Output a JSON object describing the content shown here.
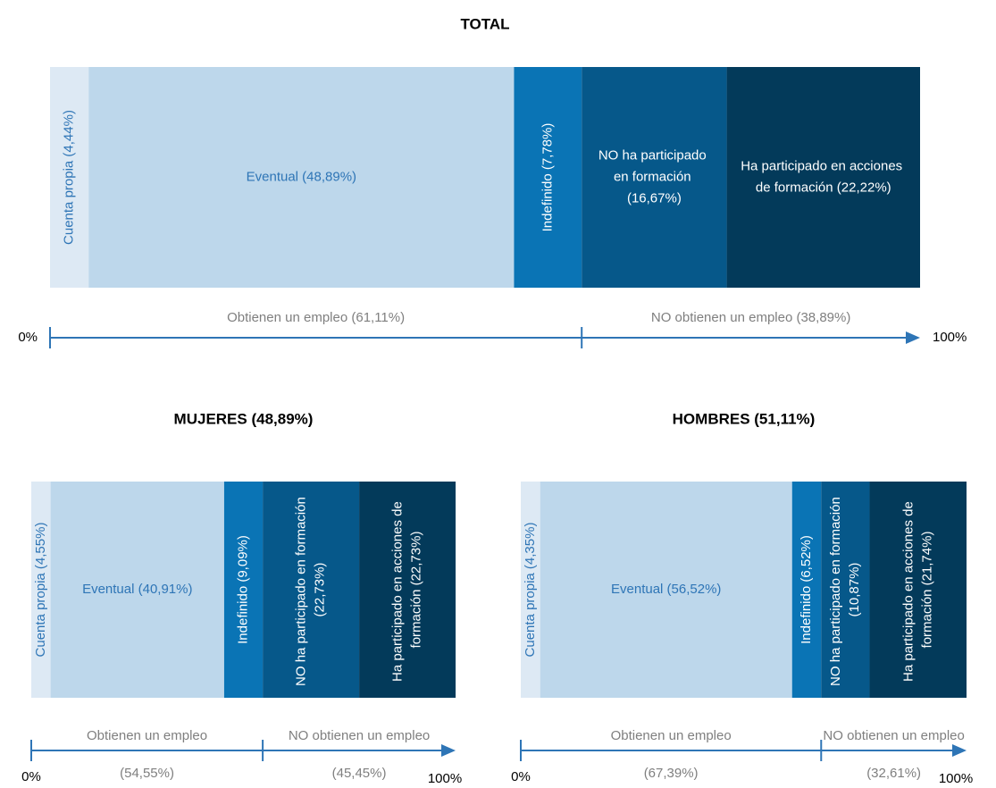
{
  "chart_data": [
    {
      "type": "stackedbar",
      "title": "TOTAL",
      "series": [
        {
          "name": "Cuenta propia (4,44%)",
          "color": "#dde9f4",
          "values": [
            4.44
          ]
        },
        {
          "name": "Eventual (48,89%)",
          "color": "#bdd7eb",
          "values": [
            48.89
          ]
        },
        {
          "name": "Indefinido (7,78%)",
          "color": "#0a74b5",
          "values": [
            7.78
          ]
        },
        {
          "name": "NO ha participado en formación (16,67%)",
          "color": "#06588a",
          "values": [
            16.67
          ]
        },
        {
          "name": "Ha participado en acciones de formación (22,22%)",
          "color": "#033a5a",
          "values": [
            22.22
          ]
        }
      ],
      "groups": [
        {
          "label": "Obtienen un empleo",
          "value": 61.11,
          "value_label": "(61,11%)"
        },
        {
          "label": "NO obtienen un empleo",
          "value": 38.89,
          "value_label": "(38,89%)"
        }
      ],
      "xlim": [
        0,
        100
      ],
      "xticks": [
        {
          "value": 0,
          "label": "0%"
        },
        {
          "value": 100,
          "label": "100%"
        }
      ]
    },
    {
      "type": "stackedbar",
      "title": "MUJERES (48,89%)",
      "series": [
        {
          "name": "Cuenta propia (4,55%)",
          "color": "#dde9f4",
          "values": [
            4.55
          ]
        },
        {
          "name": "Eventual (40,91%)",
          "color": "#bdd7eb",
          "values": [
            40.91
          ]
        },
        {
          "name": "Indefinido (9,09%)",
          "color": "#0a74b5",
          "values": [
            9.09
          ]
        },
        {
          "name": "NO ha participado en formación (22,73%)",
          "color": "#06588a",
          "values": [
            22.73
          ]
        },
        {
          "name": "Ha participado en acciones de formación (22,73%)",
          "color": "#033a5a",
          "values": [
            22.73
          ]
        }
      ],
      "groups": [
        {
          "label": "Obtienen un empleo",
          "value": 54.55,
          "value_label": "(54,55%)"
        },
        {
          "label": "NO obtienen un empleo",
          "value": 45.45,
          "value_label": "(45,45%)"
        }
      ],
      "xlim": [
        0,
        100
      ],
      "xticks": [
        {
          "value": 0,
          "label": "0%"
        },
        {
          "value": 100,
          "label": "100%"
        }
      ]
    },
    {
      "type": "stackedbar",
      "title": "HOMBRES (51,11%)",
      "series": [
        {
          "name": "Cuenta propia (4,35%)",
          "color": "#dde9f4",
          "values": [
            4.35
          ]
        },
        {
          "name": "Eventual (56,52%)",
          "color": "#bdd7eb",
          "values": [
            56.52
          ]
        },
        {
          "name": "Indefinido (6,52%)",
          "color": "#0a74b5",
          "values": [
            6.52
          ]
        },
        {
          "name": "NO ha participado en formación (10,87%)",
          "color": "#06588a",
          "values": [
            10.87
          ]
        },
        {
          "name": "Ha participado en acciones de formación (21,74%)",
          "color": "#033a5a",
          "values": [
            21.74
          ]
        }
      ],
      "groups": [
        {
          "label": "Obtienen un empleo",
          "value": 67.39,
          "value_label": "(67,39%)"
        },
        {
          "label": "NO obtienen un empleo",
          "value": 32.61,
          "value_label": "(32,61%)"
        }
      ],
      "xlim": [
        0,
        100
      ],
      "xticks": [
        {
          "value": 0,
          "label": "0%"
        },
        {
          "value": 100,
          "label": "100%"
        }
      ]
    }
  ]
}
